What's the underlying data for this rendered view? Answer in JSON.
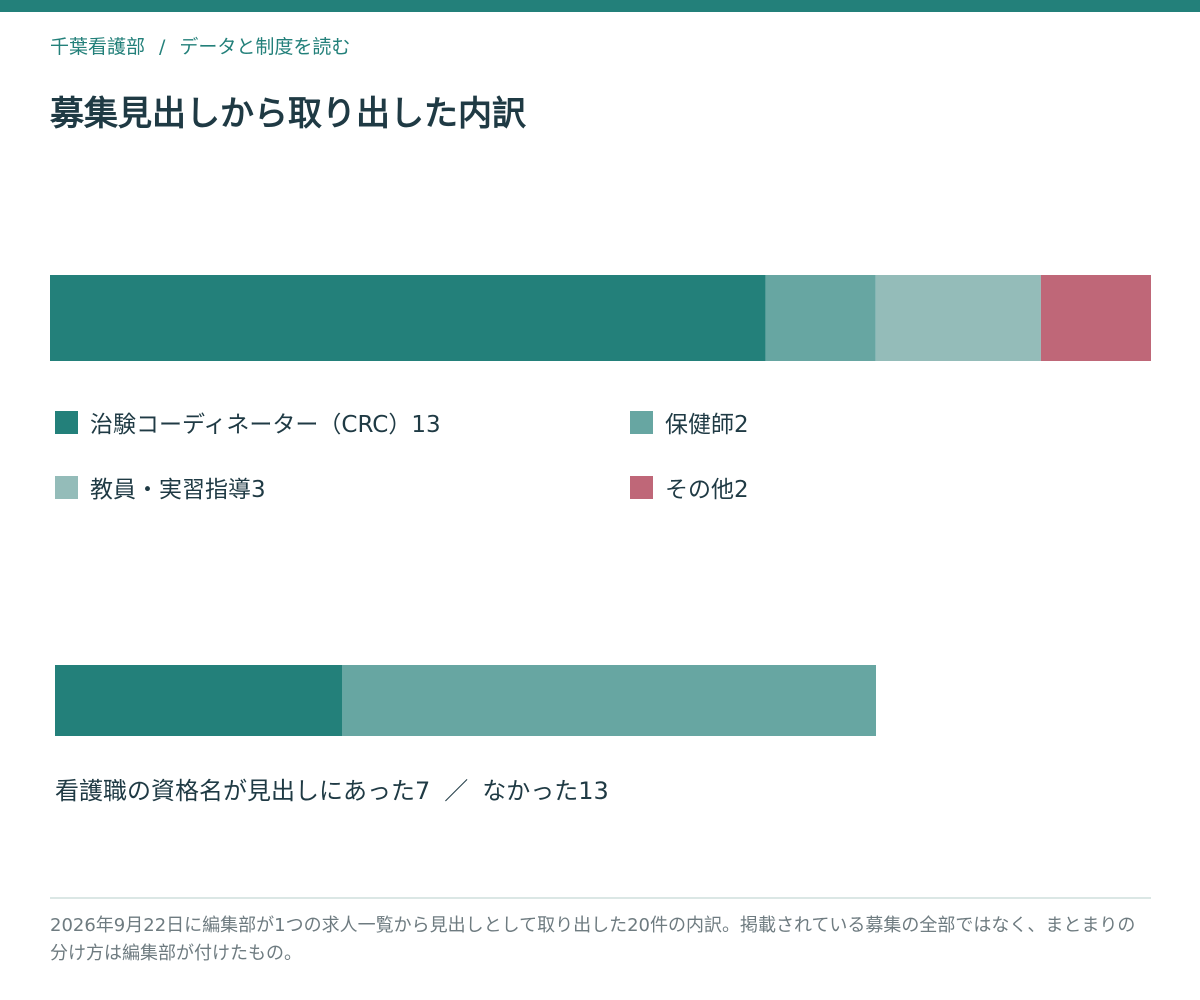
{
  "breadcrumb": {
    "site": "千葉看護部",
    "separator": "/",
    "section": "データと制度を読む"
  },
  "title": "募集見出しから取り出した内訳",
  "chart_data": [
    {
      "type": "bar",
      "orientation": "horizontal-stacked",
      "total": 20,
      "categories": [
        "治験コーディネーター（CRC）",
        "保健師",
        "教員・実習指導",
        "その他"
      ],
      "values": [
        13,
        2,
        3,
        2
      ],
      "colors": [
        "#23807a",
        "#67a6a2",
        "#94bcb9",
        "#bf6778"
      ],
      "labels": [
        "治験コーディネーター（CRC）13",
        "保健師2",
        "教員・実習指導3",
        "その他2"
      ],
      "legend": "bottom"
    },
    {
      "type": "bar",
      "orientation": "horizontal-stacked",
      "categories": [
        "看護職の資格名が見出しにあった",
        "なかった"
      ],
      "values": [
        7,
        13
      ],
      "colors": [
        "#23807a",
        "#67a6a2"
      ],
      "caption_parts": [
        "看護職の資格名が見出しにあった7",
        "／",
        "なかった13"
      ]
    }
  ],
  "footnote": "2026年9月22日に編集部が1つの求人一覧から見出しとして取り出した20件の内訳。掲載されている募集の全部ではなく、まとまりの分け方は編集部が付けたもの。"
}
